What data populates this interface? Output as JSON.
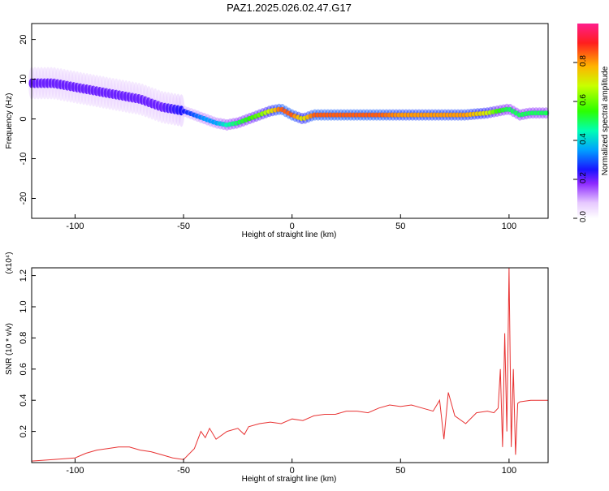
{
  "title": "PAZ1.2025.026.02.47.G17",
  "colors": {
    "snr_line": "#e83232",
    "background": "#ffffff"
  },
  "chart_data": [
    {
      "type": "heatmap",
      "panel": "spectrogram",
      "xlabel": "Height of straight line (km)",
      "ylabel": "Frequency (Hz)",
      "xlim": [
        -120,
        118
      ],
      "ylim": [
        -25,
        24
      ],
      "x_ticks": [
        -100,
        -50,
        0,
        50,
        100
      ],
      "x_tick_labels": [
        "-100",
        "-50",
        "0",
        "50",
        "100"
      ],
      "y_ticks": [
        20,
        10,
        0,
        -10,
        -20
      ],
      "y_tick_labels": [
        "20",
        "10",
        "0",
        "-10",
        "-20"
      ],
      "ridge": {
        "x": [
          -120,
          -110,
          -100,
          -90,
          -80,
          -70,
          -60,
          -50,
          -45,
          -40,
          -35,
          -30,
          -25,
          -20,
          -15,
          -10,
          -5,
          0,
          5,
          10,
          20,
          30,
          40,
          50,
          60,
          70,
          80,
          90,
          95,
          100,
          105,
          110,
          118
        ],
        "frequency": [
          9,
          9,
          8,
          7,
          6,
          5,
          3,
          2,
          1,
          0,
          -1,
          -1.5,
          -1,
          0,
          1,
          2,
          2.5,
          1,
          0,
          1,
          1,
          1,
          1,
          1,
          1,
          1,
          1,
          1.5,
          2,
          2.5,
          1,
          1.5,
          1.5
        ],
        "amplitude": [
          0.2,
          0.2,
          0.2,
          0.2,
          0.2,
          0.2,
          0.2,
          0.25,
          0.3,
          0.35,
          0.35,
          0.45,
          0.5,
          0.55,
          0.6,
          0.7,
          0.85,
          0.85,
          0.7,
          0.85,
          0.85,
          0.85,
          0.85,
          0.8,
          0.8,
          0.8,
          0.8,
          0.7,
          0.55,
          0.5,
          0.5,
          0.5,
          0.5
        ]
      },
      "colorbar": {
        "label": "Normalized spectral amplitude",
        "range": [
          0,
          1
        ],
        "ticks": [
          0.0,
          0.2,
          0.4,
          0.6,
          0.8
        ],
        "tick_labels": [
          "0.0",
          "0.2",
          "0.4",
          "0.6",
          "0.8"
        ]
      }
    },
    {
      "type": "line",
      "panel": "snr",
      "xlabel": "Height of straight line (km)",
      "ylabel": "SNR (10 * v/v)",
      "y_scale_note": "(x10⁴)",
      "xlim": [
        -120,
        118
      ],
      "ylim": [
        0,
        1.25
      ],
      "x_ticks": [
        -100,
        -50,
        0,
        50,
        100
      ],
      "x_tick_labels": [
        "-100",
        "-50",
        "0",
        "50",
        "100"
      ],
      "y_ticks": [
        0.2,
        0.4,
        0.6,
        0.8,
        1.0,
        1.2
      ],
      "y_tick_labels": [
        "0.2",
        "0.4",
        "0.6",
        "0.8",
        "1.0",
        "1.2"
      ],
      "series": [
        {
          "x": [
            -120,
            -110,
            -100,
            -95,
            -90,
            -85,
            -80,
            -75,
            -70,
            -65,
            -60,
            -55,
            -50,
            -45,
            -42,
            -40,
            -38,
            -35,
            -30,
            -25,
            -22,
            -20,
            -15,
            -10,
            -5,
            0,
            5,
            10,
            15,
            20,
            25,
            30,
            35,
            40,
            45,
            50,
            55,
            60,
            65,
            68,
            70,
            72,
            75,
            80,
            85,
            90,
            93,
            95,
            96,
            97,
            98,
            99,
            100,
            101,
            102,
            103,
            104,
            105,
            110,
            118
          ],
          "y": [
            0.01,
            0.02,
            0.03,
            0.06,
            0.08,
            0.09,
            0.1,
            0.1,
            0.08,
            0.07,
            0.05,
            0.03,
            0.02,
            0.09,
            0.2,
            0.16,
            0.22,
            0.15,
            0.2,
            0.22,
            0.18,
            0.23,
            0.25,
            0.26,
            0.25,
            0.28,
            0.27,
            0.3,
            0.31,
            0.31,
            0.33,
            0.33,
            0.32,
            0.35,
            0.37,
            0.36,
            0.37,
            0.35,
            0.33,
            0.4,
            0.15,
            0.45,
            0.3,
            0.25,
            0.32,
            0.33,
            0.32,
            0.35,
            0.6,
            0.1,
            0.83,
            0.2,
            1.25,
            0.1,
            0.6,
            0.05,
            0.38,
            0.39,
            0.4,
            0.4
          ]
        }
      ]
    }
  ]
}
